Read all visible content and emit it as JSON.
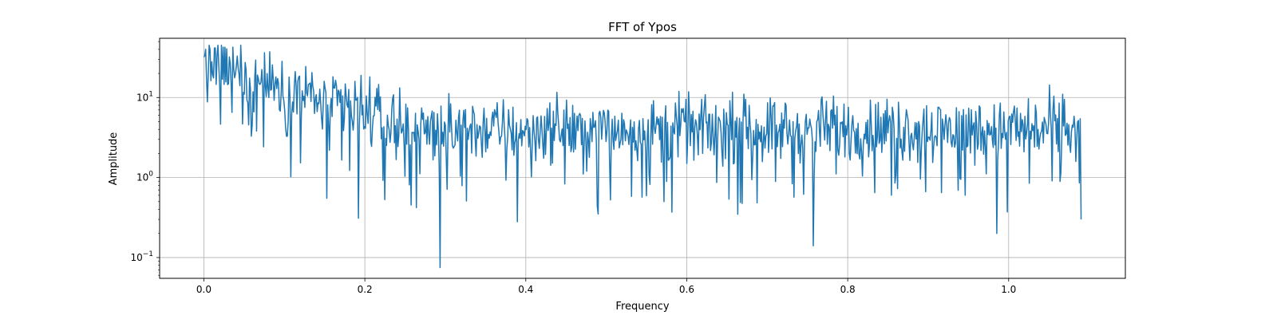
{
  "chart_data": {
    "type": "line",
    "title": "FFT of Ypos",
    "xlabel": "Frequency",
    "ylabel": "Amplitude",
    "x_scale": "linear",
    "y_scale": "log",
    "xlim": [
      -0.055,
      1.145
    ],
    "ylim": [
      0.055,
      55
    ],
    "grid": true,
    "line_color": "#1f77b4",
    "x_ticks": [
      {
        "value": 0.0,
        "label": "0.0"
      },
      {
        "value": 0.2,
        "label": "0.2"
      },
      {
        "value": 0.4,
        "label": "0.4"
      },
      {
        "value": 0.6,
        "label": "0.6"
      },
      {
        "value": 0.8,
        "label": "0.8"
      },
      {
        "value": 1.0,
        "label": "1.0"
      }
    ],
    "y_ticks": [
      {
        "value": 0.1,
        "base": "10",
        "exp": "−1"
      },
      {
        "value": 1,
        "base": "10",
        "exp": "0"
      },
      {
        "value": 10,
        "base": "10",
        "exp": "1"
      }
    ],
    "series": [
      {
        "color": "#1f77b4",
        "x_start": 0.0,
        "x_end": 1.09,
        "points": 1000,
        "key_points": [
          {
            "x": 0.0,
            "y": 32
          },
          {
            "x": 0.002,
            "y": 40
          },
          {
            "x": 0.005,
            "y": 20
          },
          {
            "x": 0.01,
            "y": 28
          },
          {
            "x": 0.02,
            "y": 14
          },
          {
            "x": 0.035,
            "y": 6.5
          },
          {
            "x": 0.05,
            "y": 11
          },
          {
            "x": 0.06,
            "y": 4.5
          },
          {
            "x": 0.1,
            "y": 7
          },
          {
            "x": 0.153,
            "y": 0.55
          },
          {
            "x": 0.192,
            "y": 0.31
          },
          {
            "x": 0.293,
            "y": 0.075
          },
          {
            "x": 0.39,
            "y": 0.28
          },
          {
            "x": 0.49,
            "y": 0.35
          },
          {
            "x": 0.757,
            "y": 0.14
          },
          {
            "x": 0.985,
            "y": 0.2
          },
          {
            "x": 1.067,
            "y": 11
          },
          {
            "x": 1.09,
            "y": 0.3
          }
        ]
      }
    ]
  }
}
